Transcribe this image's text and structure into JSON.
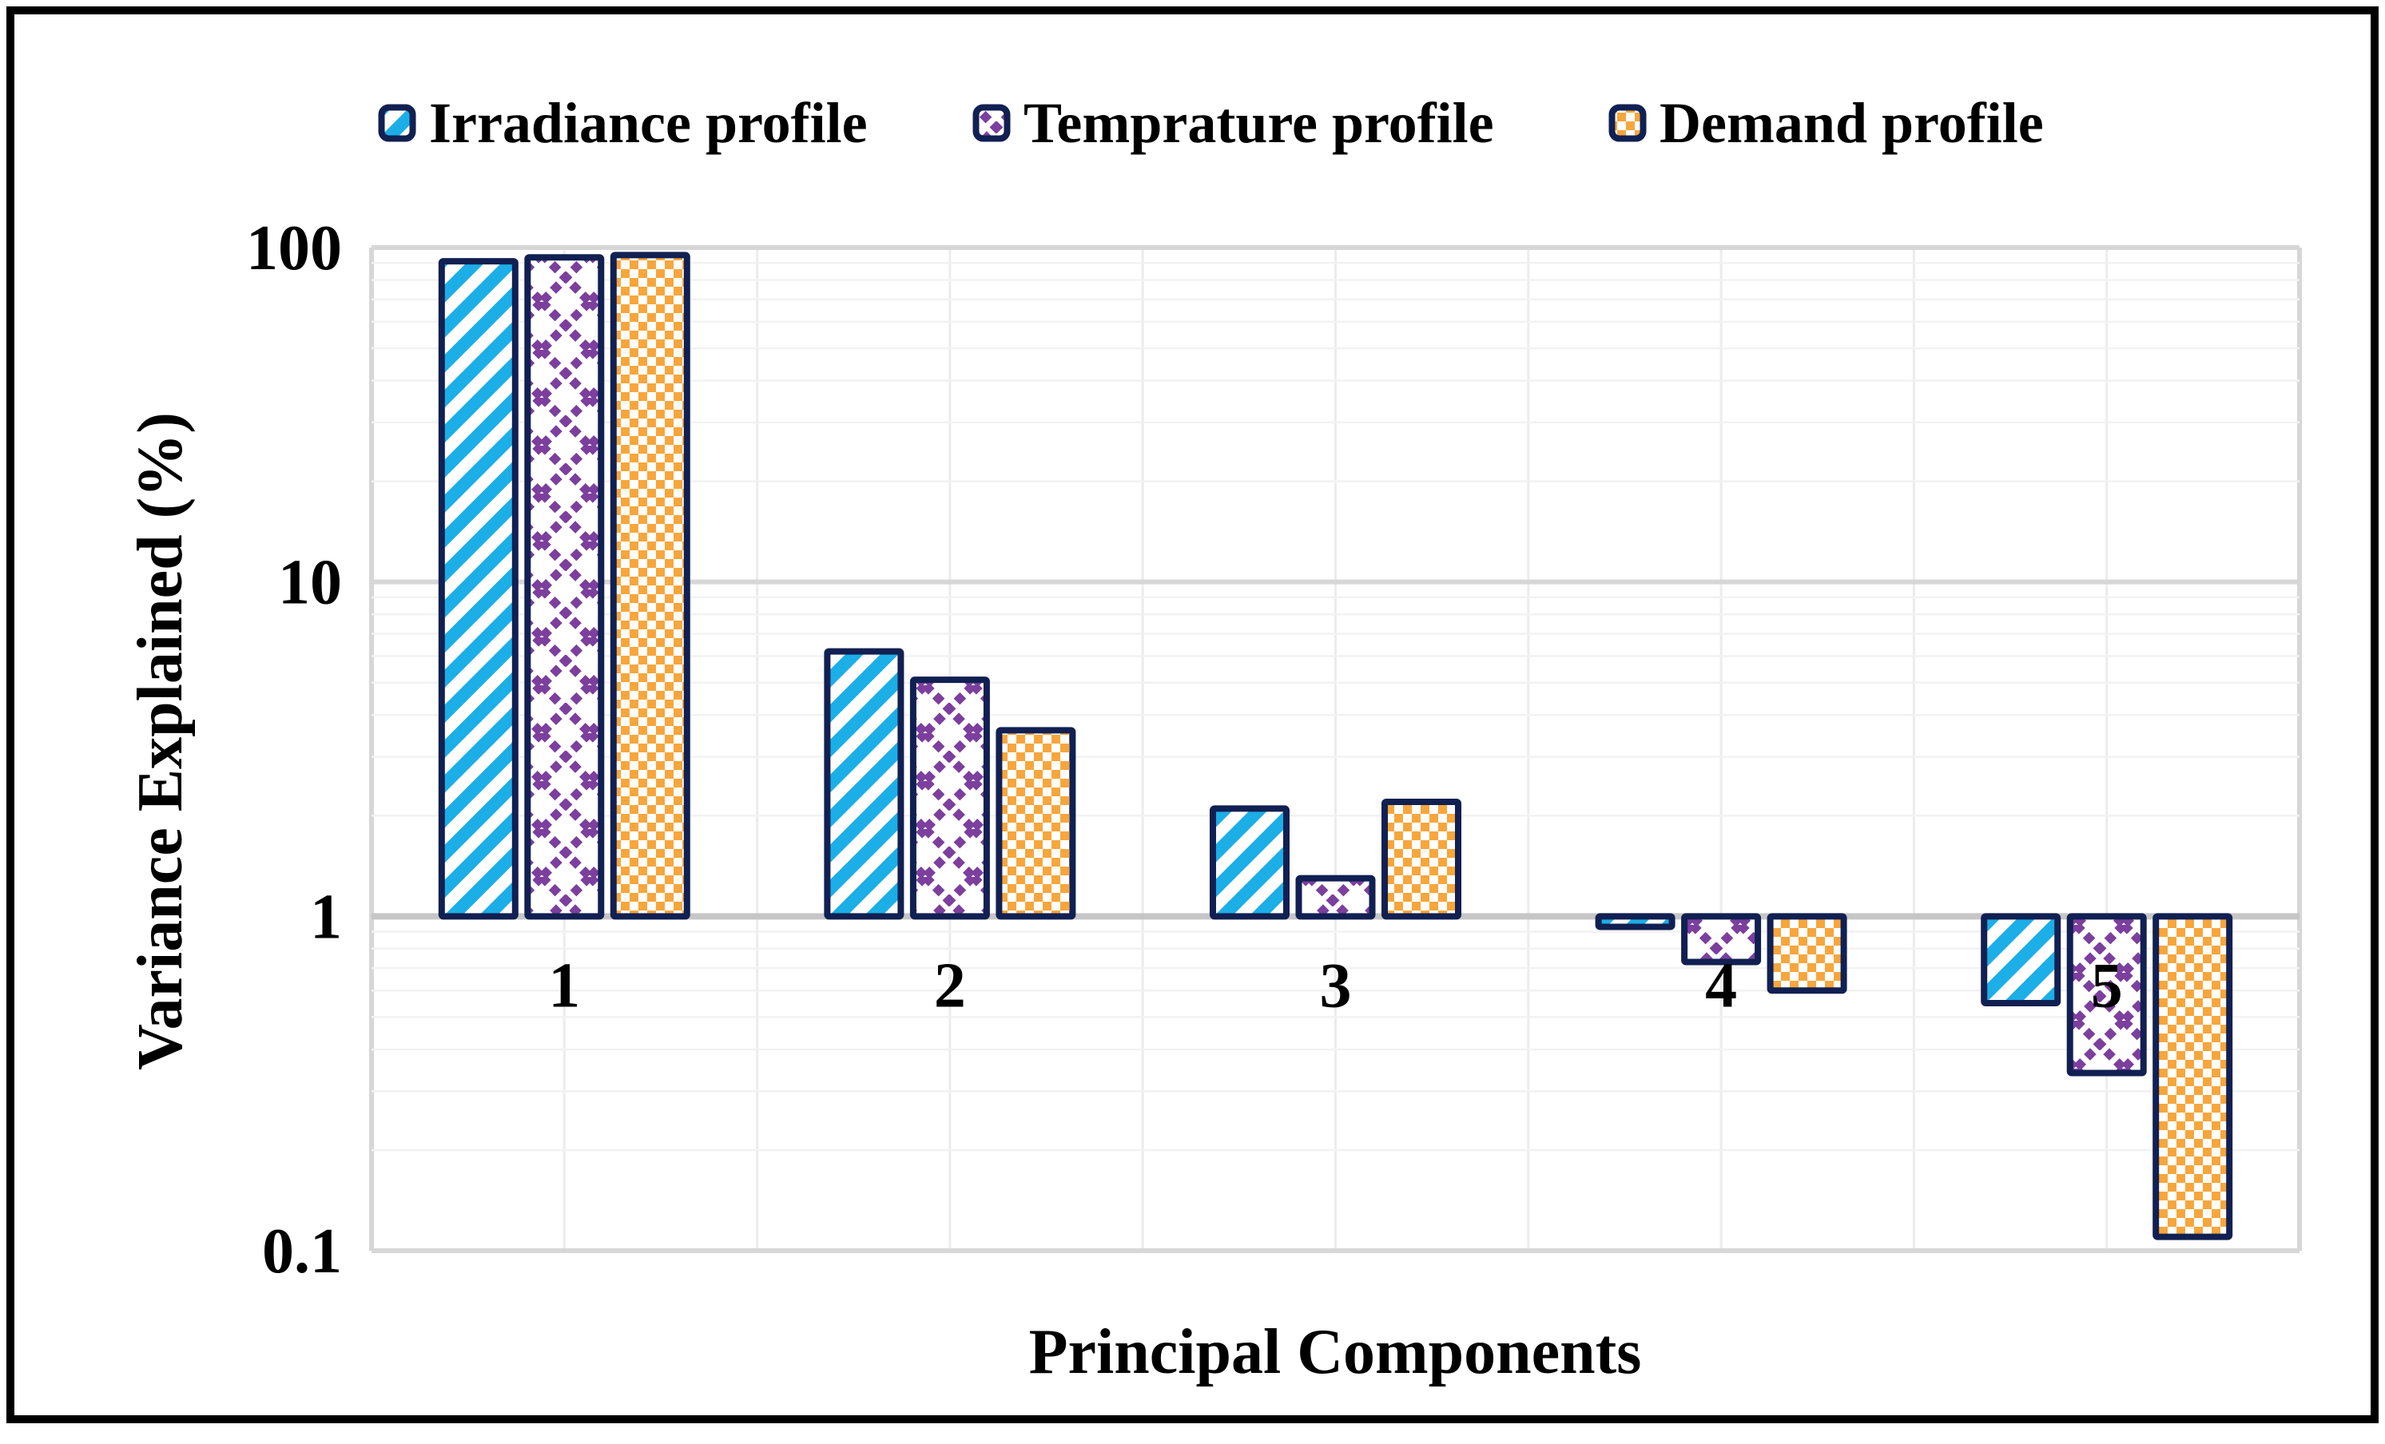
{
  "frame": {
    "background": "#FFFFFF",
    "border_color": "#000000"
  },
  "legend": {
    "position": "top",
    "items": [
      {
        "key": "irradiance",
        "label": "Irradiance profile"
      },
      {
        "key": "temprature",
        "label": "Temprature profile"
      },
      {
        "key": "demand",
        "label": "Demand profile"
      }
    ]
  },
  "y_axis": {
    "title": "Variance Explained (%)",
    "scale": "log",
    "ticks": [
      {
        "label": "100",
        "value": 100
      },
      {
        "label": "10",
        "value": 10
      },
      {
        "label": "1",
        "value": 1
      },
      {
        "label": "0.1",
        "value": 0.1
      }
    ]
  },
  "x_axis": {
    "title": "Principal Components",
    "categories": [
      "1",
      "2",
      "3",
      "4",
      "5"
    ]
  },
  "chart_data": {
    "type": "bar",
    "y_scale": "log",
    "ylim": [
      0.1,
      100
    ],
    "bar_baseline": 1,
    "grid": "on",
    "legend_position": "top",
    "title": "",
    "xlabel": "Principal Components",
    "ylabel": "Variance Explained (%)",
    "categories": [
      "1",
      "2",
      "3",
      "4",
      "5"
    ],
    "series": [
      {
        "name": "Irradiance profile",
        "key": "irradiance",
        "pattern": "diagonal-stripe",
        "color": "#1CAEE6",
        "values": [
          91,
          6.2,
          2.1,
          0.93,
          0.55
        ]
      },
      {
        "name": "Temprature profile",
        "key": "temprature",
        "pattern": "diamond-crosshatch",
        "color": "#7C3F9E",
        "values": [
          93.5,
          5.1,
          1.3,
          0.73,
          0.34
        ]
      },
      {
        "name": "Demand profile",
        "key": "demand",
        "pattern": "checkerboard",
        "color": "#F7A63C",
        "values": [
          95,
          3.6,
          2.2,
          0.6,
          0.11
        ]
      }
    ],
    "bar_border_color": "#112052",
    "grid_colors": {
      "major": "#D7D7D7",
      "minor": "#F2F2F2",
      "baseline": "#C6C6C6",
      "vertical": "#ECECEC"
    }
  }
}
